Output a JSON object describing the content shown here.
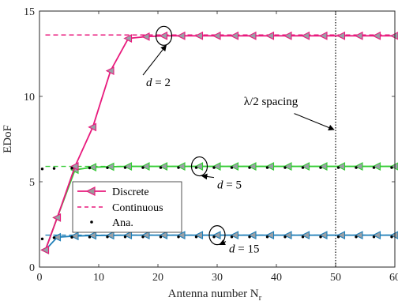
{
  "chart_data": {
    "type": "line",
    "xlabel": "Antenna number N",
    "xlabel_sub": "r",
    "ylabel": "EDoF",
    "xlim": [
      0,
      60
    ],
    "ylim": [
      0,
      15
    ],
    "xticks": [
      0,
      10,
      20,
      30,
      40,
      50,
      60
    ],
    "yticks": [
      0,
      5,
      10,
      15
    ],
    "grid": false,
    "legend": {
      "placement": "lower-left",
      "entries": [
        "Discrete",
        "Continuous",
        "Ana."
      ]
    },
    "colors": {
      "d2": "#e8197c",
      "d5": "#33cc33",
      "d15": "#1f7fb8",
      "ana": "#000000"
    },
    "continuous": {
      "d2": 13.6,
      "d5": 5.9,
      "d15": 1.87
    },
    "series": [
      {
        "name": "Discrete",
        "group": "d2",
        "x": [
          1,
          3,
          6,
          9,
          12,
          15,
          18,
          21,
          24,
          27,
          30,
          33,
          36,
          39,
          42,
          45,
          48,
          51,
          54,
          57,
          60
        ],
        "y": [
          1.0,
          2.9,
          5.9,
          8.2,
          11.5,
          13.4,
          13.5,
          13.55,
          13.55,
          13.55,
          13.55,
          13.55,
          13.55,
          13.55,
          13.55,
          13.55,
          13.55,
          13.55,
          13.55,
          13.55,
          13.55
        ]
      },
      {
        "group": "d5",
        "x": [
          1,
          3,
          6,
          9,
          12,
          15,
          18,
          21,
          24,
          27,
          30,
          33,
          36,
          39,
          42,
          45,
          48,
          51,
          54,
          57,
          60
        ],
        "y": [
          1.0,
          2.9,
          5.7,
          5.85,
          5.88,
          5.9,
          5.9,
          5.9,
          5.9,
          5.9,
          5.9,
          5.9,
          5.9,
          5.9,
          5.9,
          5.9,
          5.9,
          5.9,
          5.9,
          5.9,
          5.9
        ]
      },
      {
        "group": "d15",
        "x": [
          1,
          3,
          6,
          9,
          12,
          15,
          18,
          21,
          24,
          27,
          30,
          33,
          36,
          39,
          42,
          45,
          48,
          51,
          54,
          57,
          60
        ],
        "y": [
          1.0,
          1.75,
          1.82,
          1.85,
          1.86,
          1.87,
          1.87,
          1.87,
          1.87,
          1.87,
          1.87,
          1.87,
          1.87,
          1.87,
          1.87,
          1.87,
          1.87,
          1.87,
          1.87,
          1.87,
          1.87
        ]
      }
    ],
    "analytic": {
      "x": [
        1,
        3,
        6,
        9,
        12,
        15,
        18,
        21,
        24,
        27,
        30,
        33,
        36,
        39,
        42,
        45,
        48,
        51,
        54,
        57,
        60
      ],
      "d5": [
        5.75,
        5.78,
        5.8,
        5.81,
        5.82,
        5.83,
        5.83,
        5.83,
        5.83,
        5.83,
        5.83,
        5.83,
        5.83,
        5.83,
        5.83,
        5.83,
        5.83,
        5.83,
        5.83,
        5.83,
        5.83
      ],
      "d15": [
        1.65,
        1.72,
        1.75,
        1.76,
        1.77,
        1.77,
        1.77,
        1.77,
        1.77,
        1.77,
        1.77,
        1.77,
        1.77,
        1.77,
        1.77,
        1.77,
        1.77,
        1.77,
        1.77,
        1.77,
        1.77
      ]
    },
    "spacing_line": {
      "x": 50,
      "label": "λ/2 spacing"
    },
    "annotations": [
      {
        "label": "d = 2",
        "target": [
          21,
          13.55
        ],
        "text_at": [
          18,
          10.6
        ]
      },
      {
        "label": "d = 5",
        "target": [
          27,
          5.9
        ],
        "text_at": [
          30,
          4.6
        ]
      },
      {
        "label": "d = 15",
        "target": [
          30,
          1.87
        ],
        "text_at": [
          32,
          0.85
        ]
      }
    ]
  }
}
